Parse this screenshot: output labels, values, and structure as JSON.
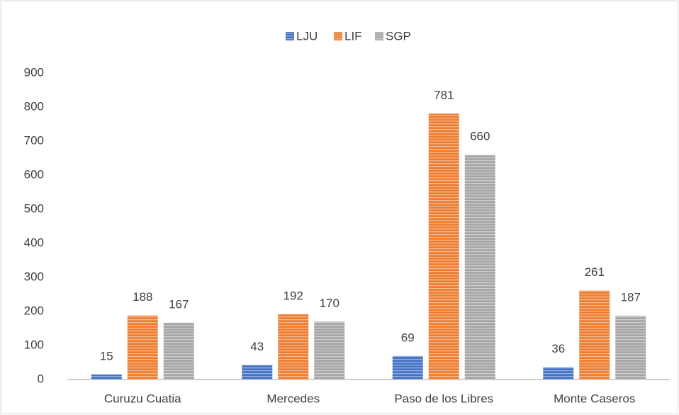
{
  "chart_data": {
    "type": "bar",
    "categories": [
      "Curuzu Cuatia",
      "Mercedes",
      "Paso de los Libres",
      "Monte Caseros"
    ],
    "series": [
      {
        "name": "LJU",
        "color": "#4472c4",
        "values": [
          15,
          43,
          69,
          36
        ]
      },
      {
        "name": "LIF",
        "color": "#ed7d31",
        "values": [
          188,
          192,
          781,
          261
        ]
      },
      {
        "name": "SGP",
        "color": "#a5a5a5",
        "values": [
          167,
          170,
          660,
          187
        ]
      }
    ],
    "ylim": [
      0,
      900
    ],
    "yticks": [
      0,
      100,
      200,
      300,
      400,
      500,
      600,
      700,
      800,
      900
    ],
    "legend": "top",
    "grid": false
  }
}
